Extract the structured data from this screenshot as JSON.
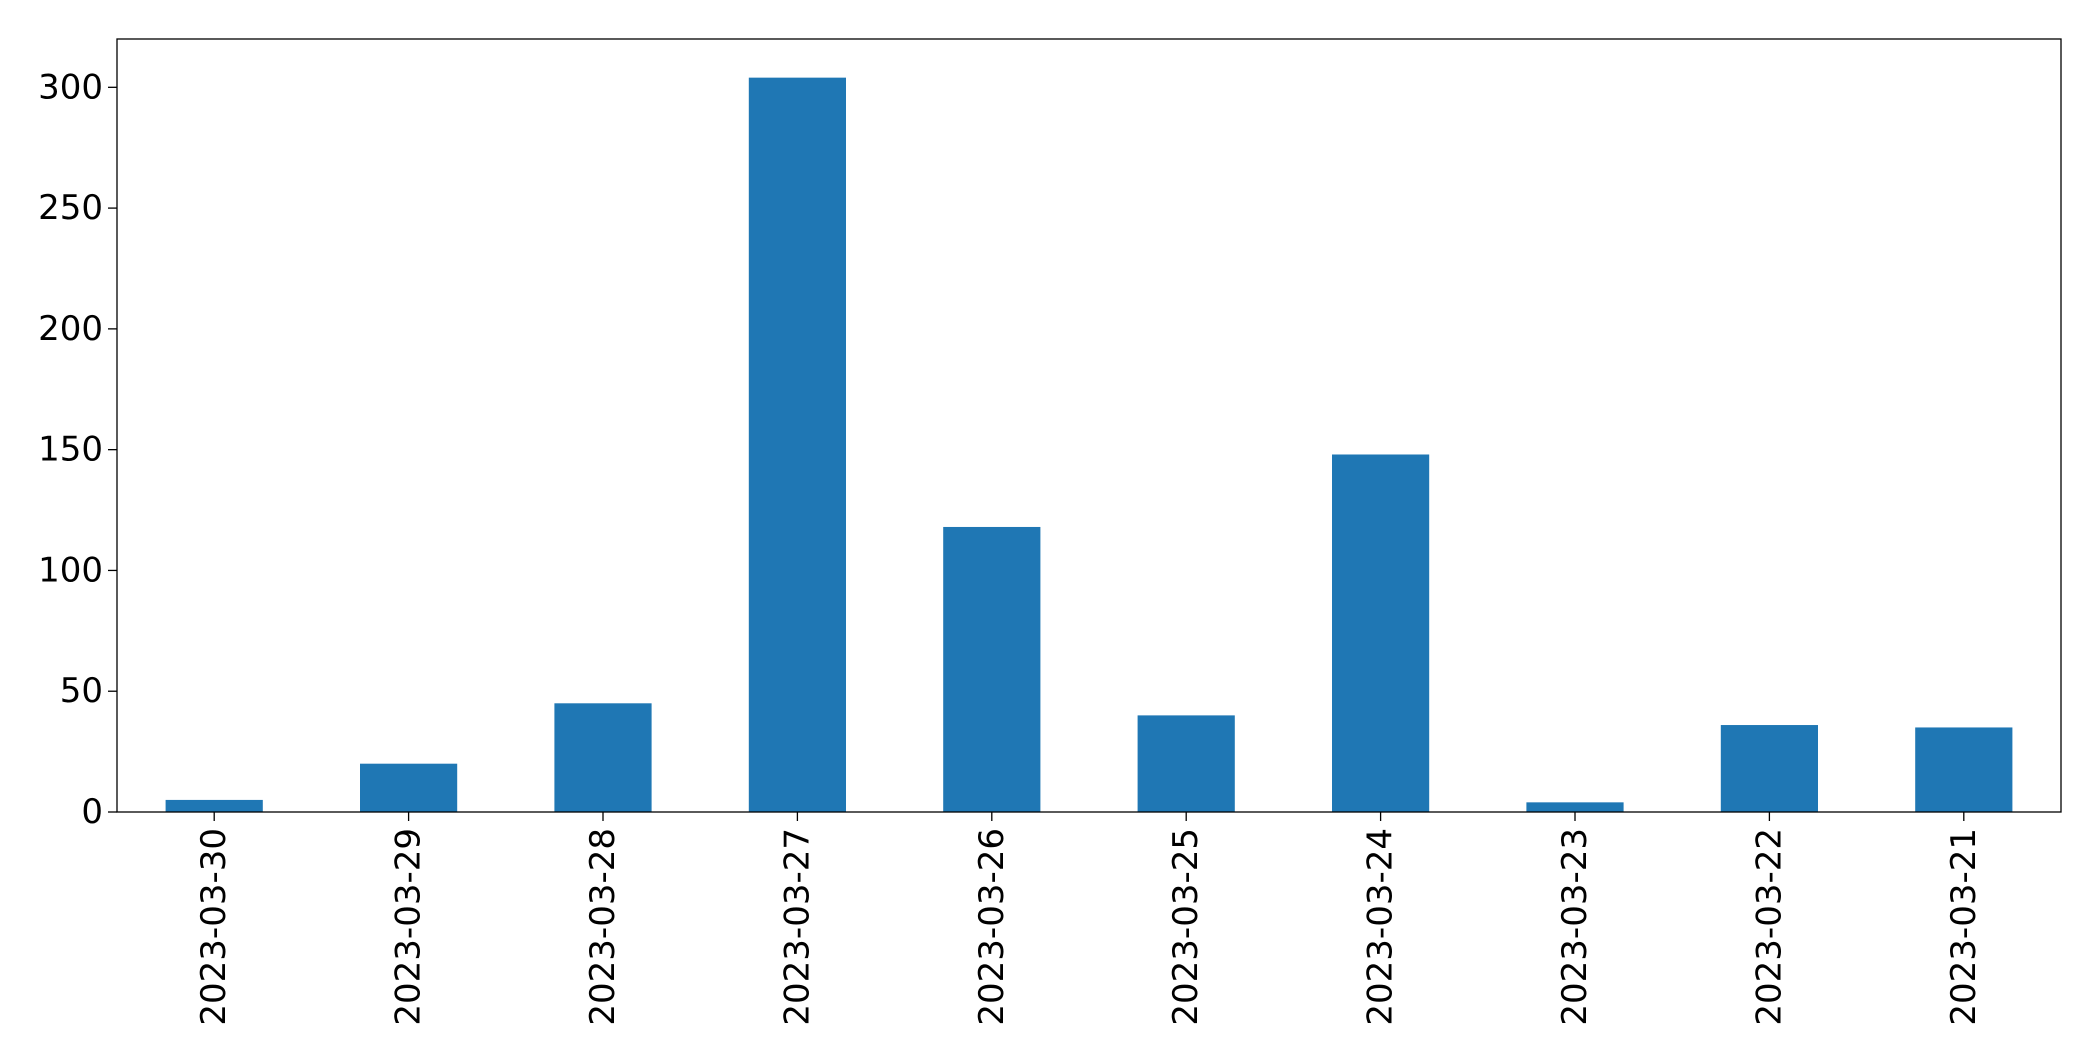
{
  "chart_data": {
    "type": "bar",
    "title": "",
    "xlabel": "",
    "ylabel": "",
    "categories": [
      "2023-03-30",
      "2023-03-29",
      "2023-03-28",
      "2023-03-27",
      "2023-03-26",
      "2023-03-25",
      "2023-03-24",
      "2023-03-23",
      "2023-03-22",
      "2023-03-21"
    ],
    "values": [
      5,
      20,
      45,
      304,
      118,
      40,
      148,
      4,
      36,
      35
    ],
    "ylim": [
      0,
      320
    ],
    "yticks": [
      0,
      50,
      100,
      150,
      200,
      250,
      300
    ],
    "grid": false,
    "legend": false,
    "bar_color": "#1f77b4",
    "axis_color": "#000000",
    "background": "#ffffff"
  }
}
